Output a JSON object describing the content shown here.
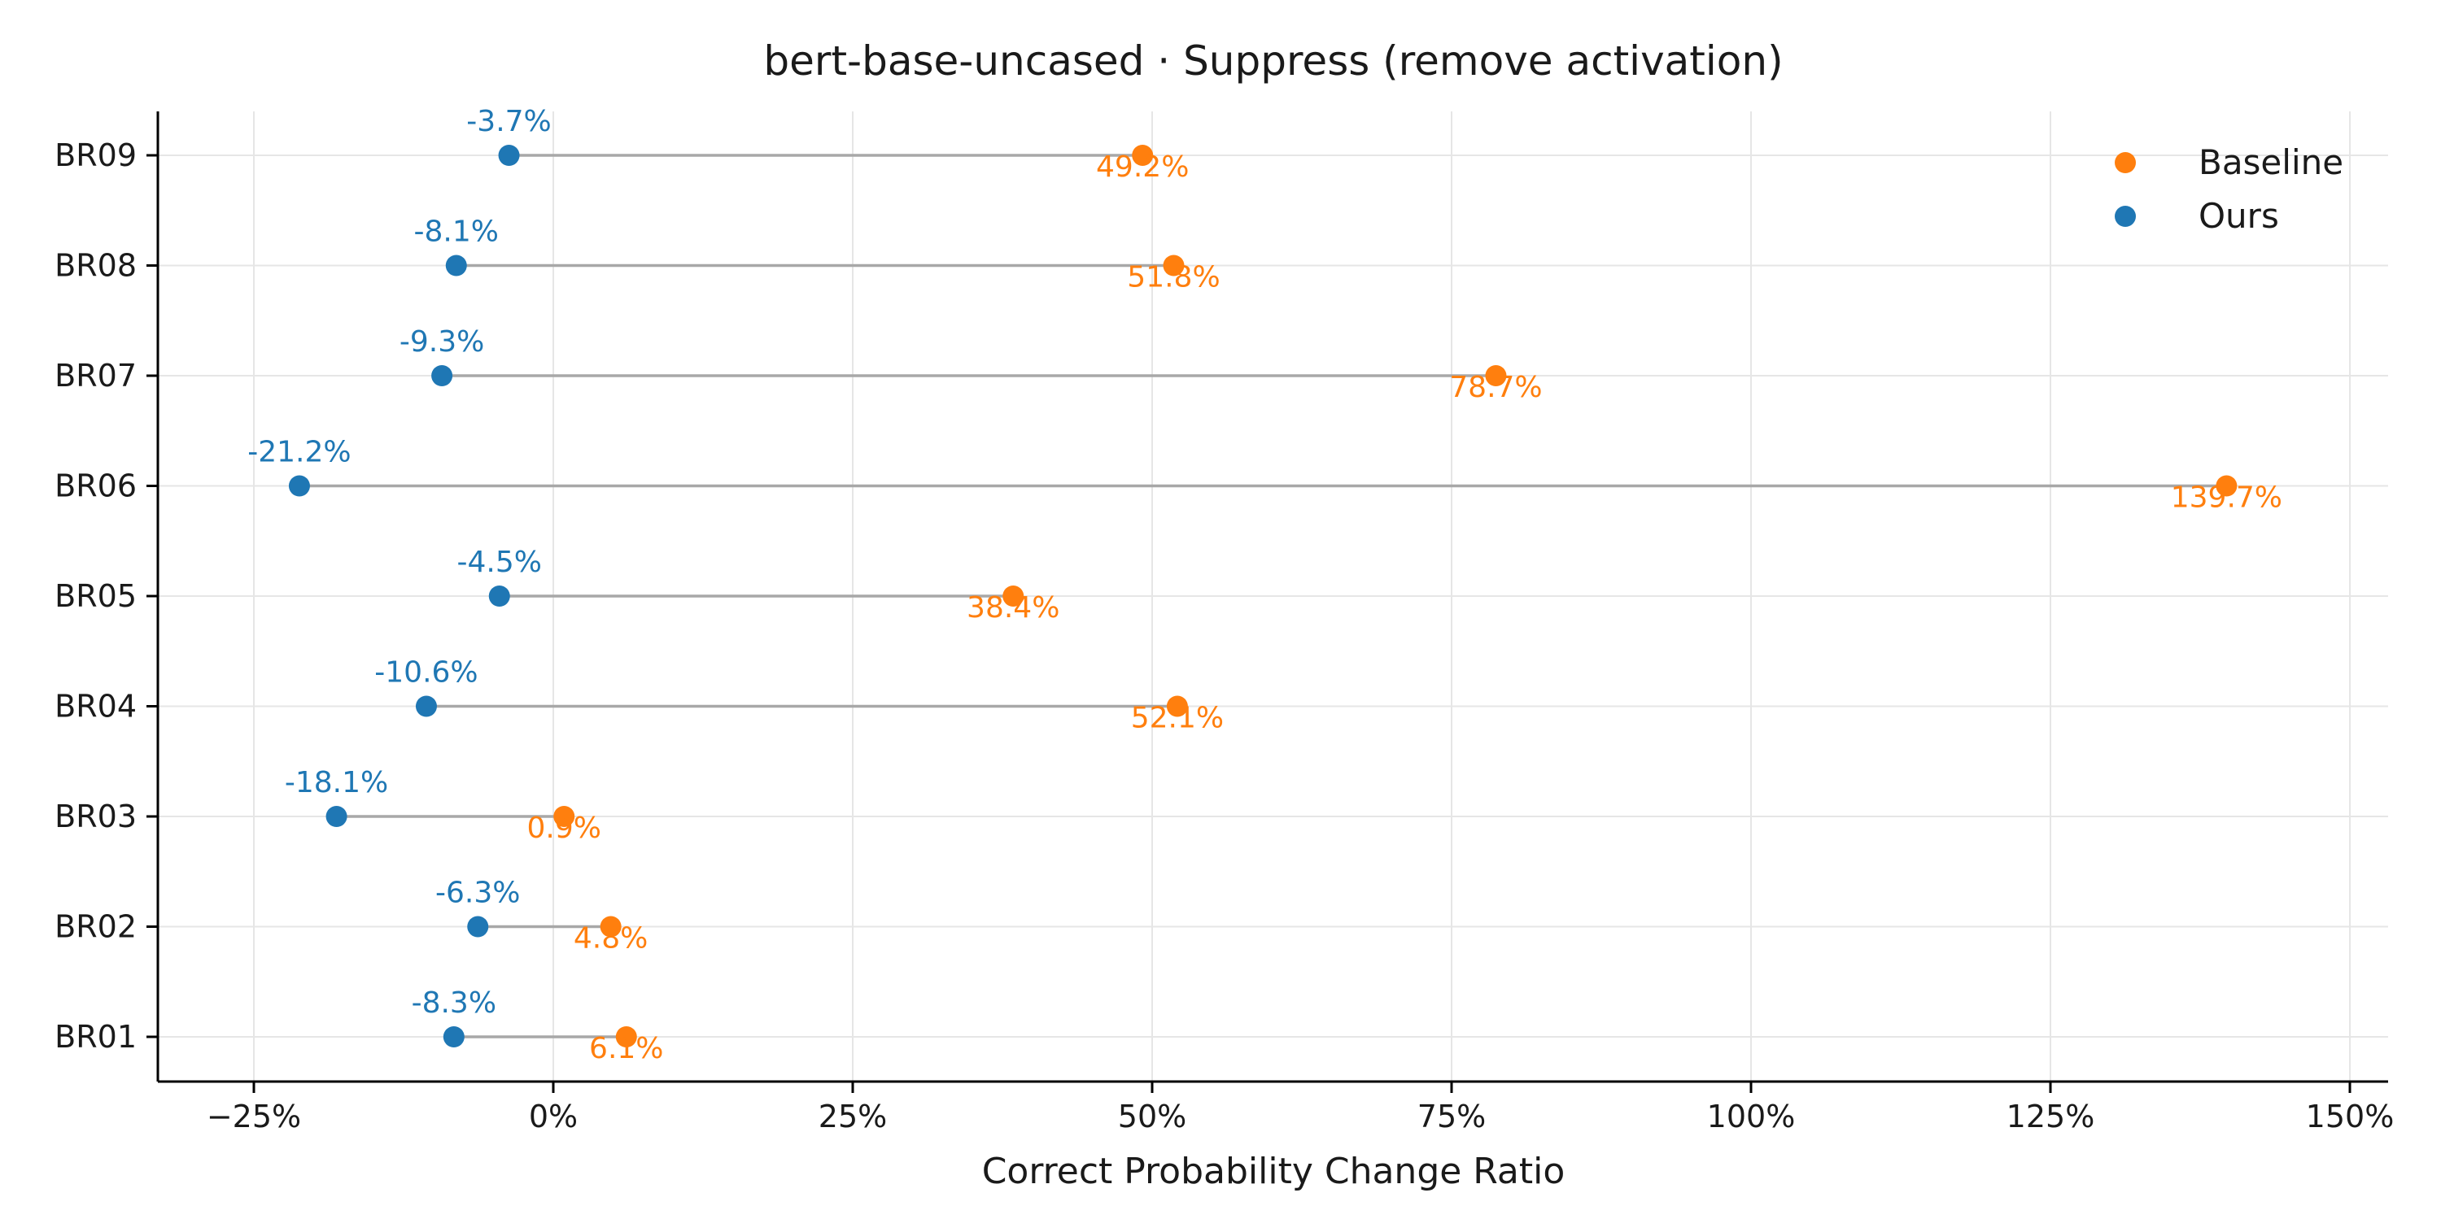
{
  "chart_data": {
    "type": "dumbbell",
    "title": "bert-base-uncased · Suppress (remove activation)",
    "xlabel": "Correct Probability Change Ratio",
    "ylabel": "",
    "xlim": [
      -34,
      153
    ],
    "x_ticks": [
      -25,
      0,
      25,
      50,
      75,
      100,
      125,
      150
    ],
    "x_tick_labels": [
      "−25%",
      "0%",
      "25%",
      "50%",
      "75%",
      "100%",
      "125%",
      "150%"
    ],
    "categories": [
      "BR09",
      "BR08",
      "BR07",
      "BR06",
      "BR05",
      "BR04",
      "BR03",
      "BR02",
      "BR01"
    ],
    "grid": true,
    "legend_position": "top-right",
    "series": [
      {
        "name": "Baseline",
        "color": "#ff7f0e",
        "values": [
          49.2,
          51.8,
          78.7,
          139.7,
          38.4,
          52.1,
          0.9,
          4.8,
          6.1
        ],
        "labels": [
          "49.2%",
          "51.8%",
          "78.7%",
          "139.7%",
          "38.4%",
          "52.1%",
          "0.9%",
          "4.8%",
          "6.1%"
        ]
      },
      {
        "name": "Ours",
        "color": "#1f77b4",
        "values": [
          -3.7,
          -8.1,
          -9.3,
          -21.2,
          -4.5,
          -10.6,
          -18.1,
          -6.3,
          -8.3
        ],
        "labels": [
          "-3.7%",
          "-8.1%",
          "-9.3%",
          "-21.2%",
          "-4.5%",
          "-10.6%",
          "-18.1%",
          "-6.3%",
          "-8.3%"
        ]
      }
    ]
  }
}
